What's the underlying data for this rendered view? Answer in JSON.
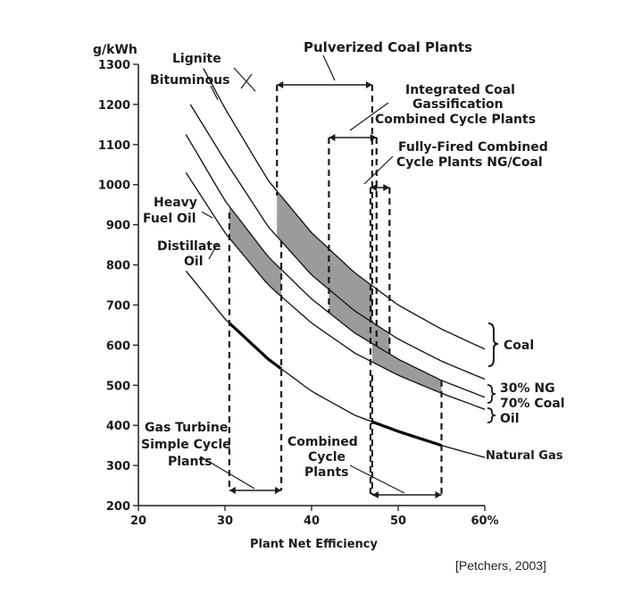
{
  "chart_data": {
    "type": "line",
    "ylabel": "g/kWh",
    "xlabel": "Plant Net Efficiency",
    "xlim": [
      20,
      60
    ],
    "ylim": [
      200,
      1300
    ],
    "x_ticks": [
      "20",
      "30",
      "40",
      "50",
      "60%"
    ],
    "y_ticks": [
      "200",
      "300",
      "400",
      "500",
      "600",
      "700",
      "800",
      "900",
      "1000",
      "1100",
      "1200",
      "1300"
    ],
    "grid": false,
    "series": [
      {
        "name": "Lignite",
        "x": [
          27.5,
          30,
          35,
          40,
          45,
          50,
          55,
          60
        ],
        "y": [
          1290,
          1190,
          1010,
          880,
          780,
          700,
          640,
          590
        ]
      },
      {
        "name": "Bituminous",
        "x": [
          26,
          30,
          35,
          40,
          45,
          50,
          55,
          60
        ],
        "y": [
          1200,
          1060,
          895,
          775,
          685,
          615,
          560,
          515
        ]
      },
      {
        "name": "Heavy Fuel Oil",
        "x": [
          25.5,
          30,
          35,
          40,
          45,
          50,
          55,
          60
        ],
        "y": [
          1125,
          960,
          820,
          715,
          630,
          565,
          512,
          470
        ]
      },
      {
        "name": "Distillate Oil",
        "x": [
          25.5,
          30,
          35,
          40,
          45,
          50,
          55,
          60
        ],
        "y": [
          1030,
          880,
          750,
          655,
          580,
          525,
          480,
          440
        ]
      },
      {
        "name": "Natural Gas",
        "x": [
          25.5,
          30,
          35,
          40,
          45,
          50,
          55,
          60
        ],
        "y": [
          785,
          665,
          565,
          485,
          425,
          385,
          350,
          320
        ]
      }
    ],
    "shaded_regions": [
      {
        "plant": "Gas Turbine Simple Cycle Plants",
        "x_range": [
          30.5,
          36.5
        ],
        "between": [
          "Heavy Fuel Oil",
          "Distillate Oil"
        ]
      },
      {
        "plant": "Pulverized Coal Plants",
        "x_range": [
          36,
          47
        ],
        "between": [
          "Lignite",
          "Bituminous"
        ]
      },
      {
        "plant": "Integrated Coal Gassification Combined Cycle Plants",
        "x_range": [
          42,
          49
        ],
        "between": [
          "Bituminous",
          "Heavy Fuel Oil"
        ]
      },
      {
        "plant": "Combined Cycle Plants",
        "x_range": [
          47,
          55
        ],
        "between": [
          "Distillate Oil",
          "Heavy Fuel Oil"
        ]
      }
    ],
    "annotations": {
      "pulverized": "Pulverized Coal Plants",
      "igcc": [
        "Integrated Coal",
        "Gassification",
        "Combined Cycle Plants"
      ],
      "fully_fired": [
        "Fully-Fired Combined",
        "Cycle Plants NG/Coal"
      ],
      "gas_turbine": [
        "Gas Turbine",
        "Simple Cycle",
        "Plants"
      ],
      "combined_cycle": [
        "Combined",
        "Cycle",
        "Plants"
      ],
      "lignite": "Lignite",
      "bituminous": "Bituminous",
      "heavy_fuel_oil": [
        "Heavy",
        "Fuel Oil"
      ],
      "distillate_oil": [
        "Distillate",
        "Oil"
      ],
      "right_coal": "Coal",
      "right_mix": [
        "30% NG",
        "70% Coal"
      ],
      "right_oil": "Oil",
      "right_natural_gas": "Natural Gas"
    }
  },
  "citation": "[Petchers, 2003]"
}
